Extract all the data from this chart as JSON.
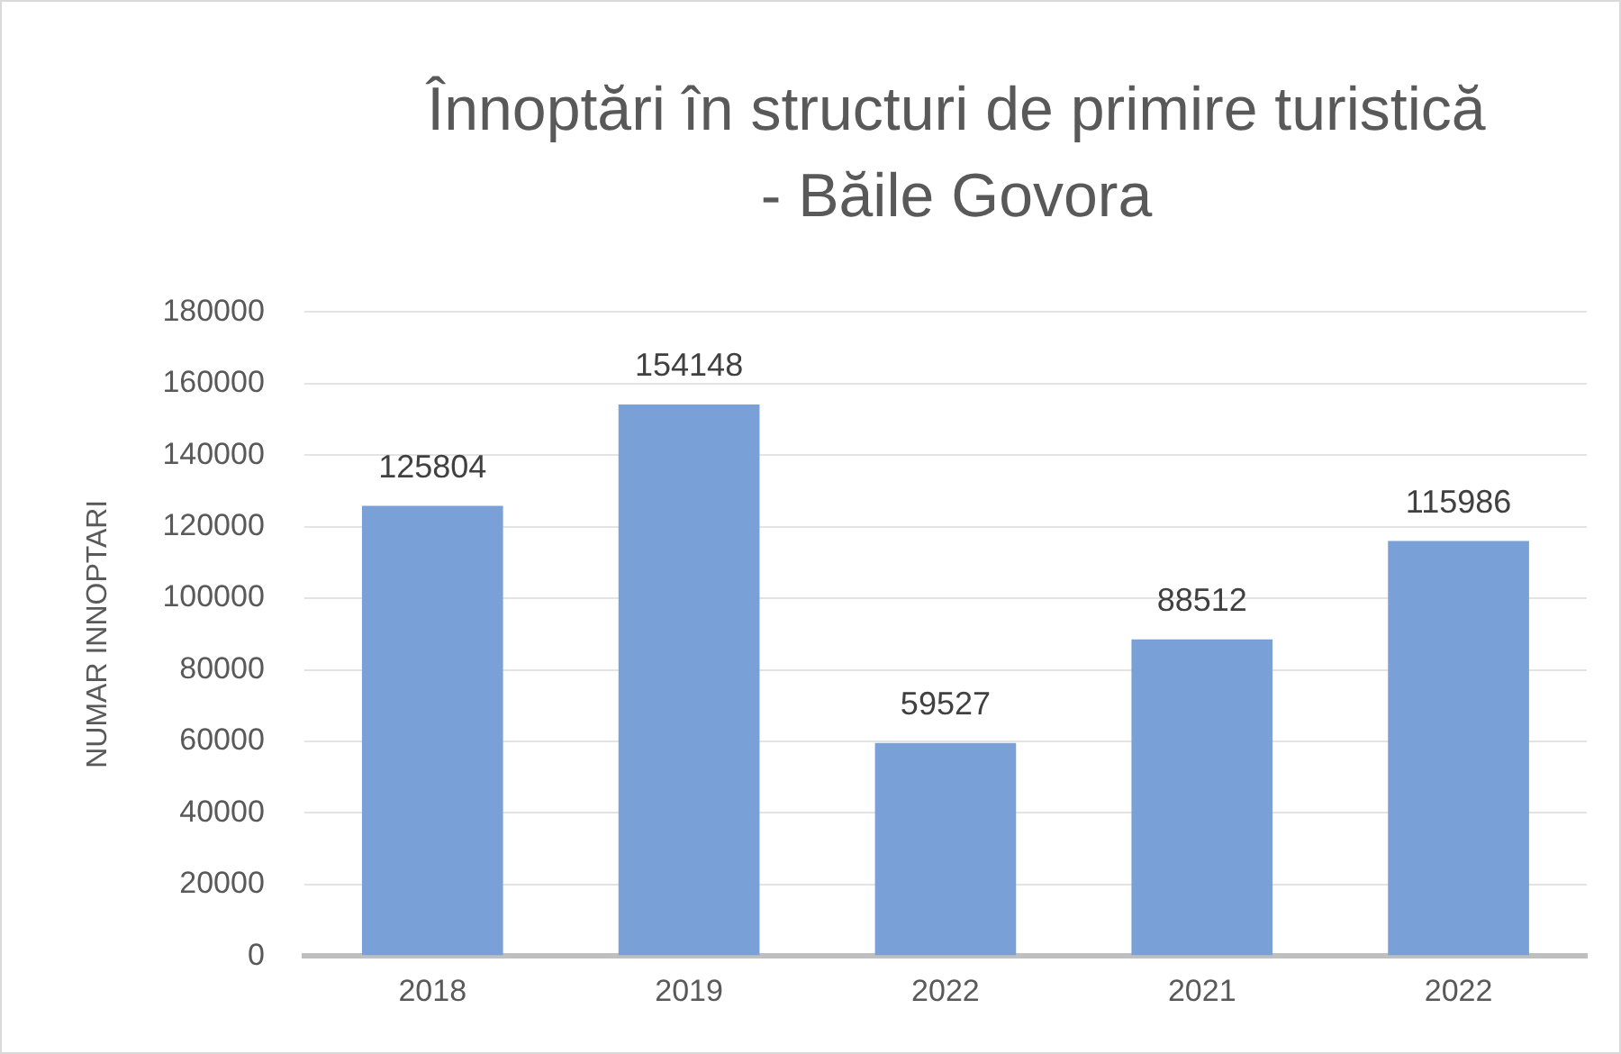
{
  "chart_data": {
    "type": "bar",
    "title": "Înnoptări în structuri de primire turistică - Băile Govora",
    "ylabel": "NUMAR INNOPTARI",
    "categories": [
      "2018",
      "2019",
      "2022",
      "2021",
      "2022"
    ],
    "values": [
      125804,
      154148,
      59527,
      88512,
      115986
    ],
    "color": "#7aa0d8",
    "ylim": [
      0,
      180000
    ],
    "yticks": [
      0,
      20000,
      40000,
      60000,
      80000,
      100000,
      120000,
      140000,
      160000,
      180000
    ],
    "grid": "y",
    "data_labels": true,
    "legend": false
  }
}
